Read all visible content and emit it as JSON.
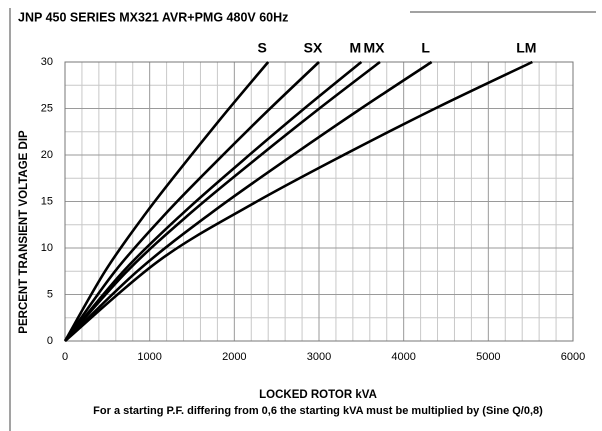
{
  "chart_data": {
    "type": "line",
    "title": "JNP 450 SERIES MX321 AVR+PMG 480V 60Hz",
    "xlabel": "LOCKED ROTOR kVA",
    "ylabel": "PERCENT TRANSIENT VOLTAGE DIP",
    "note": "For a starting P.F. differing from 0,6 the starting kVA must be multiplied by (Sine Q/0,8)",
    "xlim": [
      0,
      6000
    ],
    "xticks": [
      0,
      1000,
      2000,
      3000,
      4000,
      5000,
      6000
    ],
    "ylim": [
      0,
      30
    ],
    "yticks": [
      0,
      5,
      10,
      15,
      20,
      25,
      30
    ],
    "grid": true,
    "minor_divisions": {
      "x": 5,
      "y": 2
    },
    "series": [
      {
        "name": "S",
        "color": "#000000",
        "x": [
          0,
          480,
          960,
          1440,
          1920,
          2400
        ],
        "values": [
          0,
          7.6,
          13.8,
          19.4,
          24.8,
          30
        ]
      },
      {
        "name": "SX",
        "color": "#000000",
        "x": [
          0,
          600,
          1200,
          1800,
          2400,
          3000
        ],
        "values": [
          0,
          7.6,
          13.8,
          19.4,
          24.8,
          30
        ]
      },
      {
        "name": "M",
        "color": "#000000",
        "x": [
          0,
          700,
          1400,
          2100,
          2800,
          3500
        ],
        "values": [
          0,
          7.6,
          13.8,
          19.4,
          24.8,
          30
        ]
      },
      {
        "name": "MX",
        "color": "#000000",
        "x": [
          0,
          744,
          1488,
          2232,
          2976,
          3720
        ],
        "values": [
          0,
          7.6,
          13.8,
          19.4,
          24.8,
          30
        ]
      },
      {
        "name": "L",
        "color": "#000000",
        "x": [
          0,
          866,
          1732,
          2598,
          3464,
          4330
        ],
        "values": [
          0,
          7.6,
          13.8,
          19.4,
          24.8,
          30
        ]
      },
      {
        "name": "LM",
        "color": "#000000",
        "x": [
          0,
          1104,
          2208,
          3312,
          4416,
          5520
        ],
        "values": [
          0,
          8.6,
          14.7,
          20.1,
          25.2,
          30
        ]
      }
    ]
  }
}
